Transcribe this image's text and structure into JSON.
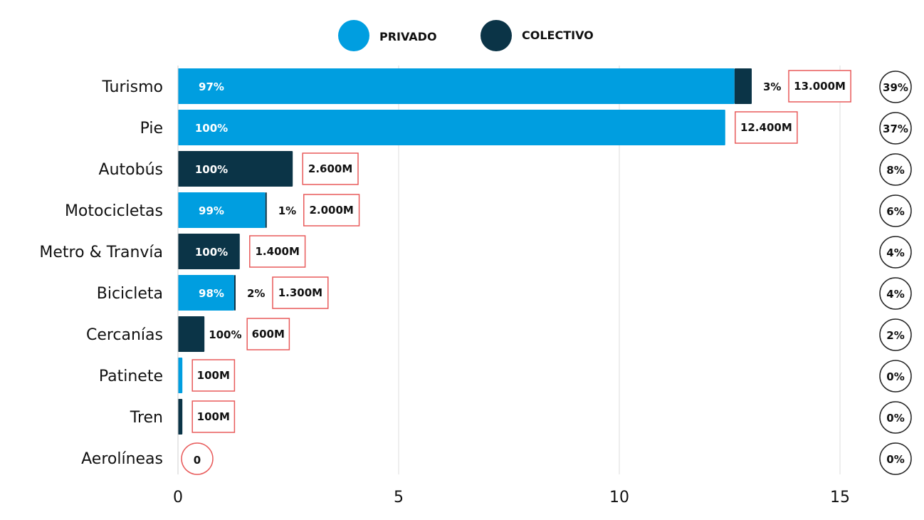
{
  "chart_data": {
    "type": "bar",
    "orientation": "horizontal",
    "stacked": true,
    "xlim": [
      0,
      15
    ],
    "x_ticks": [
      "0",
      "5",
      "10",
      "15"
    ],
    "grid": "vertical",
    "legend_position": "top-center",
    "colors": {
      "privado": "#009ee0",
      "colectivo": "#0b3447",
      "total_box": "#e85a5a",
      "share_circle": "#222222"
    },
    "series": [
      {
        "name": "PRIVADO",
        "values": [
          12.61,
          12.4,
          0,
          1.98,
          0,
          1.274,
          0,
          0.1,
          0,
          0
        ]
      },
      {
        "name": "COLECTIVO",
        "values": [
          0.39,
          0,
          2.6,
          0.02,
          1.4,
          0.026,
          0.6,
          0,
          0.1,
          0
        ]
      }
    ],
    "rows": [
      {
        "category": "Turismo",
        "privado": 12.61,
        "colectivo": 0.39,
        "privado_label": "97%",
        "colectivo_label": "3%",
        "total_label": "13.000M",
        "share": "39%"
      },
      {
        "category": "Pie",
        "privado": 12.4,
        "colectivo": 0,
        "privado_label": "100%",
        "colectivo_label": "",
        "total_label": "12.400M",
        "share": "37%"
      },
      {
        "category": "Autobús",
        "privado": 0,
        "colectivo": 2.6,
        "privado_label": "",
        "colectivo_label": "100%",
        "total_label": "2.600M",
        "share": "8%"
      },
      {
        "category": "Motocicletas",
        "privado": 1.98,
        "colectivo": 0.02,
        "privado_label": "99%",
        "colectivo_label": "1%",
        "total_label": "2.000M",
        "share": "6%"
      },
      {
        "category": "Metro & Tranvía",
        "privado": 0,
        "colectivo": 1.4,
        "privado_label": "",
        "colectivo_label": "100%",
        "total_label": "1.400M",
        "share": "4%"
      },
      {
        "category": "Bicicleta",
        "privado": 1.274,
        "colectivo": 0.026,
        "privado_label": "98%",
        "colectivo_label": "2%",
        "total_label": "1.300M",
        "share": "4%"
      },
      {
        "category": "Cercanías",
        "privado": 0,
        "colectivo": 0.6,
        "privado_label": "",
        "colectivo_label": "100%",
        "total_label": "600M",
        "share": "2%"
      },
      {
        "category": "Patinete",
        "privado": 0.1,
        "colectivo": 0,
        "privado_label": "",
        "colectivo_label": "",
        "total_label": "100M",
        "share": "0%"
      },
      {
        "category": "Tren",
        "privado": 0,
        "colectivo": 0.1,
        "privado_label": "",
        "colectivo_label": "",
        "total_label": "100M",
        "share": "0%"
      },
      {
        "category": "Aerolíneas",
        "privado": 0,
        "colectivo": 0,
        "privado_label": "",
        "colectivo_label": "",
        "total_label": "0",
        "share": "0%"
      }
    ]
  }
}
